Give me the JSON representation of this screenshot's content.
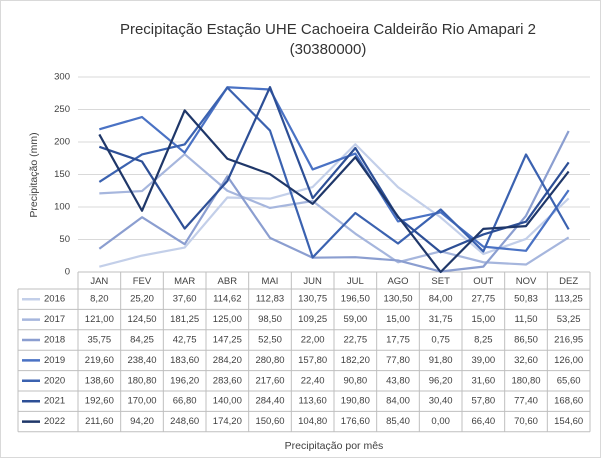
{
  "chart_data": {
    "type": "line",
    "title": "Precipitação Estação UHE Cachoeira Caldeirão Rio Amapari 2",
    "subtitle": "(30380000)",
    "y_label": "Precipitação (mm)",
    "x_label": "Precipitação por mês",
    "categories": [
      "JAN",
      "FEV",
      "MAR",
      "ABR",
      "MAI",
      "JUN",
      "JUL",
      "AGO",
      "SET",
      "OUT",
      "NOV",
      "DEZ"
    ],
    "ylim": [
      0,
      300
    ],
    "yticks": [
      0,
      50,
      100,
      150,
      200,
      250,
      300
    ],
    "grid": true,
    "series": [
      {
        "name": "2016",
        "color": "#c3cfe9",
        "values": [
          8.2,
          25.2,
          37.6,
          114.62,
          112.83,
          130.75,
          196.5,
          130.5,
          84,
          27.75,
          50.83,
          113.25
        ],
        "value_labels": [
          "8,20",
          "25,20",
          "37,60",
          "114,62",
          "112,83",
          "130,75",
          "196,50",
          "130,50",
          "84,00",
          "27,75",
          "50,83",
          "113,25"
        ]
      },
      {
        "name": "2017",
        "color": "#a6b6dd",
        "values": [
          121,
          124.5,
          181.25,
          125,
          98.5,
          109.25,
          59,
          15,
          31.75,
          15,
          11.5,
          53.25
        ],
        "value_labels": [
          "121,00",
          "124,50",
          "181,25",
          "125,00",
          "98,50",
          "109,25",
          "59,00",
          "15,00",
          "31,75",
          "15,00",
          "11,50",
          "53,25"
        ]
      },
      {
        "name": "2018",
        "color": "#8b9ed0",
        "values": [
          35.75,
          84.25,
          42.75,
          147.25,
          52.5,
          22,
          22.75,
          17.75,
          0.75,
          8.25,
          86.5,
          216.95
        ],
        "value_labels": [
          "35,75",
          "84,25",
          "42,75",
          "147,25",
          "52,50",
          "22,00",
          "22,75",
          "17,75",
          "0,75",
          "8,25",
          "86,50",
          "216,95"
        ]
      },
      {
        "name": "2019",
        "color": "#4a72c4",
        "values": [
          219.6,
          238.4,
          183.6,
          284.2,
          280.8,
          157.8,
          182.2,
          77.8,
          91.8,
          39,
          32.6,
          126
        ],
        "value_labels": [
          "219,60",
          "238,40",
          "183,60",
          "284,20",
          "280,80",
          "157,80",
          "182,20",
          "77,80",
          "91,80",
          "39,00",
          "32,60",
          "126,00"
        ]
      },
      {
        "name": "2020",
        "color": "#3b62b0",
        "values": [
          138.6,
          180.8,
          196.2,
          283.6,
          217.6,
          22.4,
          90.8,
          43.8,
          96.2,
          31.6,
          180.8,
          65.6
        ],
        "value_labels": [
          "138,60",
          "180,80",
          "196,20",
          "283,60",
          "217,60",
          "22,40",
          "90,80",
          "43,80",
          "96,20",
          "31,60",
          "180,80",
          "65,60"
        ]
      },
      {
        "name": "2021",
        "color": "#2d4f96",
        "values": [
          192.6,
          170,
          66.8,
          140,
          284.4,
          113.6,
          190.8,
          84,
          30.4,
          57.8,
          77.4,
          168.6
        ],
        "value_labels": [
          "192,60",
          "170,00",
          "66,80",
          "140,00",
          "284,40",
          "113,60",
          "190,80",
          "84,00",
          "30,40",
          "57,80",
          "77,40",
          "168,60"
        ]
      },
      {
        "name": "2022",
        "color": "#1f3769",
        "values": [
          211.6,
          94.2,
          248.6,
          174.2,
          150.6,
          104.8,
          176.6,
          85.4,
          0,
          66.4,
          70.6,
          154.6
        ],
        "value_labels": [
          "211,60",
          "94,20",
          "248,60",
          "174,20",
          "150,60",
          "104,80",
          "176,60",
          "85,40",
          "0,00",
          "66,40",
          "70,60",
          "154,60"
        ]
      }
    ]
  }
}
